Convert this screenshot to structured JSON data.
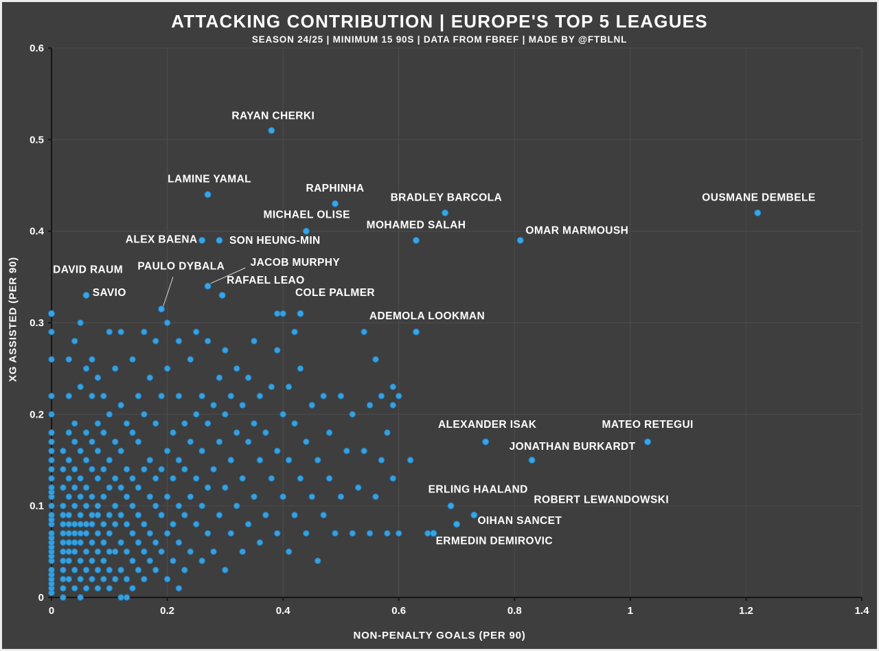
{
  "header": {
    "title": "ATTACKING CONTRIBUTION | EUROPE'S TOP 5 LEAGUES",
    "subtitle": "SEASON 24/25 | MINIMUM 15 90S | DATA FROM FBREF | MADE BY @FTBLNL"
  },
  "chart_data": {
    "type": "scatter",
    "title": "ATTACKING CONTRIBUTION | EUROPE'S TOP 5 LEAGUES",
    "subtitle": "SEASON 24/25 | MINIMUM 15 90S | DATA FROM FBREF | MADE BY @FTBLNL",
    "xlabel": "NON-PENALTY GOALS (PER 90)",
    "ylabel": "XG ASSISTED (PER 90)",
    "xlim": [
      0,
      1.4
    ],
    "ylim": [
      0,
      0.6
    ],
    "x_ticks": [
      0,
      0.2,
      0.4,
      0.6,
      0.8,
      1,
      1.2,
      1.4
    ],
    "x_tick_labels": [
      "0",
      "0.2",
      "0.4",
      "0.6",
      "0.8",
      "1",
      "1.2",
      "1.4"
    ],
    "y_ticks": [
      0,
      0.1,
      0.2,
      0.3,
      0.4,
      0.5,
      0.6
    ],
    "y_tick_labels": [
      "0",
      "0.1",
      "0.2",
      "0.3",
      "0.4",
      "0.5",
      "0.6"
    ],
    "grid": true,
    "legend": "none",
    "background_color": "#3e3e3e",
    "grid_color": "#4d4d4d",
    "spine_color": "#161616",
    "dot_color": "#38a5e5",
    "dot_edge_color": "#1f7fc0",
    "text_color": "#ffffff",
    "labeled_players": [
      {
        "name": "RAYAN CHERKI",
        "x": 0.38,
        "y": 0.51,
        "lx": 0.383,
        "ly": 0.526
      },
      {
        "name": "LAMINE YAMAL",
        "x": 0.27,
        "y": 0.44,
        "lx": 0.273,
        "ly": 0.457
      },
      {
        "name": "RAPHINHA",
        "x": 0.49,
        "y": 0.43,
        "lx": 0.49,
        "ly": 0.447
      },
      {
        "name": "MICHAEL OLISE",
        "x": 0.44,
        "y": 0.4,
        "lx": 0.441,
        "ly": 0.418
      },
      {
        "name": "BRADLEY BARCOLA",
        "x": 0.68,
        "y": 0.42,
        "lx": 0.682,
        "ly": 0.437
      },
      {
        "name": "OUSMANE DEMBELE",
        "x": 1.22,
        "y": 0.42,
        "lx": 1.222,
        "ly": 0.437
      },
      {
        "name": "MOHAMED SALAH",
        "x": 0.63,
        "y": 0.39,
        "lx": 0.63,
        "ly": 0.407
      },
      {
        "name": "OMAR MARMOUSH",
        "x": 0.81,
        "y": 0.39,
        "lx": 0.908,
        "ly": 0.401
      },
      {
        "name": "ALEX BAENA",
        "x": 0.26,
        "y": 0.39,
        "lx": 0.19,
        "ly": 0.391
      },
      {
        "name": "SON HEUNG-MIN",
        "x": 0.29,
        "y": 0.39,
        "lx": 0.386,
        "ly": 0.39
      },
      {
        "name": "JACOB MURPHY",
        "x": 0.27,
        "y": 0.34,
        "lx": 0.421,
        "ly": 0.366
      },
      {
        "name": "RAFAEL LEAO",
        "x": 0.295,
        "y": 0.33,
        "lx": 0.37,
        "ly": 0.3465
      },
      {
        "name": "PAULO DYBALA",
        "x": 0.19,
        "y": 0.315,
        "lx": 0.224,
        "ly": 0.362
      },
      {
        "name": "DAVID RAUM",
        "x": 0,
        "y": 0.31,
        "lx": 0.063,
        "ly": 0.358
      },
      {
        "name": "SAVIO",
        "x": 0.06,
        "y": 0.33,
        "lx": 0.1,
        "ly": 0.333
      },
      {
        "name": "COLE PALMER",
        "x": 0.43,
        "y": 0.31,
        "lx": 0.49,
        "ly": 0.333
      },
      {
        "name": "ADEMOLA LOOKMAN",
        "x": 0.63,
        "y": 0.29,
        "lx": 0.649,
        "ly": 0.3075
      },
      {
        "name": "ALEXANDER ISAK",
        "x": 0.75,
        "y": 0.17,
        "lx": 0.753,
        "ly": 0.189
      },
      {
        "name": "MATEO RETEGUI",
        "x": 1.03,
        "y": 0.17,
        "lx": 1.03,
        "ly": 0.189
      },
      {
        "name": "JONATHAN BURKARDT",
        "x": 0.83,
        "y": 0.15,
        "lx": 0.9,
        "ly": 0.165
      },
      {
        "name": "ERLING HAALAND",
        "x": 0.69,
        "y": 0.1,
        "lx": 0.737,
        "ly": 0.118
      },
      {
        "name": "ROBERT LEWANDOWSKI",
        "x": 0.73,
        "y": 0.09,
        "lx": 0.95,
        "ly": 0.107
      },
      {
        "name": "OIHAN SANCET",
        "x": 0.7,
        "y": 0.08,
        "lx": 0.809,
        "ly": 0.084
      },
      {
        "name": "ERMEDIN DEMIROVIC",
        "x": 0.66,
        "y": 0.07,
        "lx": 0.765,
        "ly": 0.062
      }
    ],
    "connectors": [
      {
        "x1": 0.275,
        "y1": 0.343,
        "x2": 0.335,
        "y2": 0.36
      },
      {
        "x1": 0.193,
        "y1": 0.318,
        "x2": 0.21,
        "y2": 0.35
      }
    ],
    "background_columns": [
      {
        "x": 0,
        "ys": [
          0.005,
          0.01,
          0.015,
          0.02,
          0.025,
          0.03,
          0.04,
          0.045,
          0.05,
          0.055,
          0.06,
          0.065,
          0.07,
          0.08,
          0.085,
          0.09,
          0.1,
          0.11,
          0.115,
          0.12,
          0.13,
          0.14,
          0.15,
          0.16,
          0.17,
          0.18,
          0.2,
          0.22,
          0.26,
          0.29
        ]
      },
      {
        "x": 0.02,
        "ys": [
          0,
          0.01,
          0.02,
          0.03,
          0.04,
          0.05,
          0.06,
          0.07,
          0.08,
          0.09,
          0.1,
          0.12,
          0.14,
          0.16
        ]
      },
      {
        "x": 0.03,
        "ys": [
          0.02,
          0.04,
          0.05,
          0.06,
          0.07,
          0.08,
          0.09,
          0.11,
          0.13,
          0.15,
          0.18,
          0.22,
          0.26
        ]
      },
      {
        "x": 0.04,
        "ys": [
          0.01,
          0.03,
          0.05,
          0.06,
          0.07,
          0.08,
          0.1,
          0.12,
          0.14,
          0.17,
          0.19,
          0.28
        ]
      },
      {
        "x": 0.05,
        "ys": [
          0,
          0.02,
          0.04,
          0.06,
          0.07,
          0.08,
          0.09,
          0.11,
          0.13,
          0.16,
          0.23,
          0.3
        ]
      },
      {
        "x": 0.06,
        "ys": [
          0.01,
          0.03,
          0.05,
          0.07,
          0.08,
          0.1,
          0.12,
          0.15,
          0.18,
          0.25
        ]
      },
      {
        "x": 0.07,
        "ys": [
          0.02,
          0.04,
          0.06,
          0.08,
          0.09,
          0.11,
          0.14,
          0.17,
          0.22,
          0.26
        ]
      },
      {
        "x": 0.08,
        "ys": [
          0.01,
          0.03,
          0.05,
          0.07,
          0.09,
          0.1,
          0.13,
          0.16,
          0.19,
          0.24
        ]
      },
      {
        "x": 0.09,
        "ys": [
          0.02,
          0.04,
          0.06,
          0.08,
          0.11,
          0.14,
          0.18,
          0.22
        ]
      },
      {
        "x": 0.1,
        "ys": [
          0.01,
          0.03,
          0.05,
          0.07,
          0.09,
          0.12,
          0.15,
          0.2,
          0.29
        ]
      },
      {
        "x": 0.11,
        "ys": [
          0.02,
          0.05,
          0.08,
          0.1,
          0.13,
          0.17,
          0.25
        ]
      },
      {
        "x": 0.12,
        "ys": [
          0,
          0.03,
          0.06,
          0.09,
          0.12,
          0.16,
          0.21,
          0.29
        ]
      },
      {
        "x": 0.13,
        "ys": [
          0,
          0.02,
          0.05,
          0.08,
          0.11,
          0.14,
          0.19
        ]
      },
      {
        "x": 0.14,
        "ys": [
          0.01,
          0.04,
          0.07,
          0.1,
          0.13,
          0.18,
          0.26
        ]
      },
      {
        "x": 0.15,
        "ys": [
          0.03,
          0.06,
          0.09,
          0.12,
          0.17,
          0.22
        ]
      },
      {
        "x": 0.16,
        "ys": [
          0.02,
          0.05,
          0.08,
          0.14,
          0.2,
          0.29
        ]
      },
      {
        "x": 0.17,
        "ys": [
          0.04,
          0.07,
          0.11,
          0.15,
          0.24
        ]
      },
      {
        "x": 0.18,
        "ys": [
          0.03,
          0.06,
          0.1,
          0.13,
          0.19,
          0.28
        ]
      },
      {
        "x": 0.19,
        "ys": [
          0.05,
          0.09,
          0.14,
          0.22
        ]
      },
      {
        "x": 0.2,
        "ys": [
          0.02,
          0.07,
          0.11,
          0.16,
          0.25,
          0.3
        ]
      },
      {
        "x": 0.21,
        "ys": [
          0.04,
          0.08,
          0.13,
          0.18
        ]
      },
      {
        "x": 0.22,
        "ys": [
          0.01,
          0.06,
          0.1,
          0.15,
          0.22,
          0.28
        ]
      },
      {
        "x": 0.23,
        "ys": [
          0.03,
          0.09,
          0.14,
          0.19
        ]
      },
      {
        "x": 0.24,
        "ys": [
          0.05,
          0.11,
          0.17,
          0.26
        ]
      },
      {
        "x": 0.25,
        "ys": [
          0.08,
          0.13,
          0.2,
          0.29
        ]
      },
      {
        "x": 0.26,
        "ys": [
          0.04,
          0.1,
          0.16,
          0.22
        ]
      },
      {
        "x": 0.27,
        "ys": [
          0.07,
          0.12,
          0.19,
          0.28
        ]
      },
      {
        "x": 0.28,
        "ys": [
          0.05,
          0.14,
          0.21
        ]
      },
      {
        "x": 0.29,
        "ys": [
          0.09,
          0.17,
          0.24
        ]
      },
      {
        "x": 0.3,
        "ys": [
          0.03,
          0.12,
          0.2,
          0.27
        ]
      },
      {
        "x": 0.31,
        "ys": [
          0.07,
          0.15,
          0.22
        ]
      },
      {
        "x": 0.32,
        "ys": [
          0.1,
          0.18,
          0.25
        ]
      },
      {
        "x": 0.33,
        "ys": [
          0.05,
          0.13,
          0.21
        ]
      },
      {
        "x": 0.34,
        "ys": [
          0.08,
          0.17,
          0.24
        ]
      },
      {
        "x": 0.35,
        "ys": [
          0.11,
          0.19,
          0.28
        ]
      },
      {
        "x": 0.36,
        "ys": [
          0.06,
          0.15,
          0.22
        ]
      },
      {
        "x": 0.37,
        "ys": [
          0.09,
          0.18
        ]
      },
      {
        "x": 0.38,
        "ys": [
          0.13,
          0.23
        ]
      },
      {
        "x": 0.39,
        "ys": [
          0.07,
          0.16,
          0.27,
          0.31
        ]
      },
      {
        "x": 0.4,
        "ys": [
          0.11,
          0.2,
          0.31
        ]
      },
      {
        "x": 0.41,
        "ys": [
          0.05,
          0.15,
          0.23
        ]
      },
      {
        "x": 0.42,
        "ys": [
          0.09,
          0.19,
          0.29
        ]
      },
      {
        "x": 0.43,
        "ys": [
          0.13,
          0.25
        ]
      },
      {
        "x": 0.44,
        "ys": [
          0.07,
          0.17
        ]
      },
      {
        "x": 0.45,
        "ys": [
          0.11,
          0.21
        ]
      },
      {
        "x": 0.46,
        "ys": [
          0.04,
          0.15
        ]
      },
      {
        "x": 0.47,
        "ys": [
          0.09,
          0.22
        ]
      },
      {
        "x": 0.48,
        "ys": [
          0.13,
          0.18
        ]
      },
      {
        "x": 0.49,
        "ys": [
          0.07
        ]
      },
      {
        "x": 0.5,
        "ys": [
          0.11,
          0.22
        ]
      },
      {
        "x": 0.51,
        "ys": [
          0.16
        ]
      },
      {
        "x": 0.52,
        "ys": [
          0.07,
          0.2
        ]
      },
      {
        "x": 0.53,
        "ys": [
          0.12
        ]
      },
      {
        "x": 0.54,
        "ys": [
          0.16,
          0.29
        ]
      },
      {
        "x": 0.55,
        "ys": [
          0.07,
          0.21
        ]
      },
      {
        "x": 0.56,
        "ys": [
          0.11,
          0.26
        ]
      },
      {
        "x": 0.57,
        "ys": [
          0.15,
          0.22
        ]
      },
      {
        "x": 0.58,
        "ys": [
          0.07,
          0.18
        ]
      },
      {
        "x": 0.59,
        "ys": [
          0.13,
          0.21,
          0.23
        ]
      },
      {
        "x": 0.6,
        "ys": [
          0.07,
          0.22
        ]
      },
      {
        "x": 0.62,
        "ys": [
          0.15
        ]
      },
      {
        "x": 0.65,
        "ys": [
          0.07
        ]
      }
    ]
  }
}
